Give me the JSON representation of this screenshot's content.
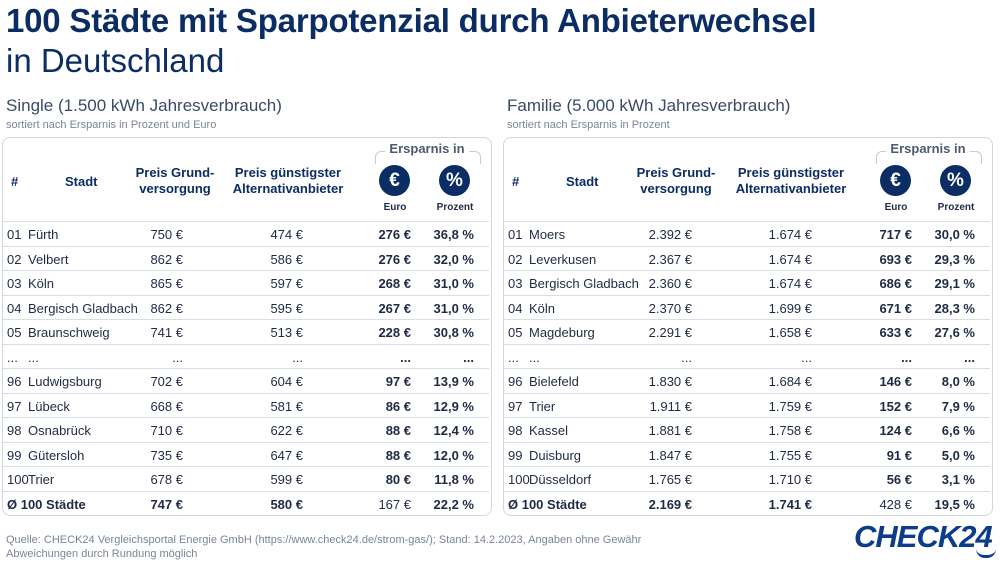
{
  "title": "100 Städte mit Sparpotenzial durch Anbieterwechsel",
  "subtitle": "in Deutschland",
  "headers": {
    "rank": "#",
    "city": "Stadt",
    "base_price": "Preis Grund-\nversorgung",
    "alt_price": "Preis günstigster\nAlternativanbieter",
    "savings": "Ersparnis in",
    "euro_symbol": "€",
    "percent_symbol": "%",
    "euro": "Euro",
    "percent": "Prozent"
  },
  "chart_data": [
    {
      "type": "table",
      "title": "Single (1.500 kWh Jahresverbrauch)",
      "subtitle": "sortiert nach Ersparnis in Prozent und Euro",
      "rows": [
        {
          "rank": "01",
          "city": "Fürth",
          "base": "750 €",
          "alt": "474 €",
          "save_eur": "276 €",
          "save_pct": "36,8 %"
        },
        {
          "rank": "02",
          "city": "Velbert",
          "base": "862 €",
          "alt": "586 €",
          "save_eur": "276 €",
          "save_pct": "32,0 %"
        },
        {
          "rank": "03",
          "city": "Köln",
          "base": "865 €",
          "alt": "597 €",
          "save_eur": "268 €",
          "save_pct": "31,0 %"
        },
        {
          "rank": "04",
          "city": "Bergisch Gladbach",
          "base": "862 €",
          "alt": "595 €",
          "save_eur": "267 €",
          "save_pct": "31,0 %"
        },
        {
          "rank": "05",
          "city": "Braunschweig",
          "base": "741 €",
          "alt": "513 €",
          "save_eur": "228 €",
          "save_pct": "30,8 %"
        },
        {
          "rank": "...",
          "city": "...",
          "base": "...",
          "alt": "...",
          "save_eur": "...",
          "save_pct": "..."
        },
        {
          "rank": "96",
          "city": "Ludwigsburg",
          "base": "702 €",
          "alt": "604 €",
          "save_eur": "97 €",
          "save_pct": "13,9 %"
        },
        {
          "rank": "97",
          "city": "Lübeck",
          "base": "668 €",
          "alt": "581 €",
          "save_eur": "86 €",
          "save_pct": "12,9 %"
        },
        {
          "rank": "98",
          "city": "Osnabrück",
          "base": "710 €",
          "alt": "622 €",
          "save_eur": "88 €",
          "save_pct": "12,4 %"
        },
        {
          "rank": "99",
          "city": "Gütersloh",
          "base": "735 €",
          "alt": "647 €",
          "save_eur": "88 €",
          "save_pct": "12,0 %"
        },
        {
          "rank": "100",
          "city": "Trier",
          "base": "678 €",
          "alt": "599 €",
          "save_eur": "80 €",
          "save_pct": "11,8 %"
        }
      ],
      "average": {
        "label": "Ø 100 Städte",
        "base": "747 €",
        "alt": "580 €",
        "save_eur": "167 €",
        "save_pct": "22,2 %"
      }
    },
    {
      "type": "table",
      "title": "Familie (5.000 kWh Jahresverbrauch)",
      "subtitle": "sortiert nach Ersparnis in Prozent",
      "rows": [
        {
          "rank": "01",
          "city": "Moers",
          "base": "2.392 €",
          "alt": "1.674 €",
          "save_eur": "717 €",
          "save_pct": "30,0 %"
        },
        {
          "rank": "02",
          "city": "Leverkusen",
          "base": "2.367 €",
          "alt": "1.674 €",
          "save_eur": "693 €",
          "save_pct": "29,3 %"
        },
        {
          "rank": "03",
          "city": "Bergisch Gladbach",
          "base": "2.360 €",
          "alt": "1.674 €",
          "save_eur": "686 €",
          "save_pct": "29,1 %"
        },
        {
          "rank": "04",
          "city": "Köln",
          "base": "2.370 €",
          "alt": "1.699 €",
          "save_eur": "671 €",
          "save_pct": "28,3 %"
        },
        {
          "rank": "05",
          "city": "Magdeburg",
          "base": "2.291 €",
          "alt": "1.658 €",
          "save_eur": "633 €",
          "save_pct": "27,6 %"
        },
        {
          "rank": "...",
          "city": "...",
          "base": "...",
          "alt": "...",
          "save_eur": "...",
          "save_pct": "..."
        },
        {
          "rank": "96",
          "city": "Bielefeld",
          "base": "1.830 €",
          "alt": "1.684 €",
          "save_eur": "146 €",
          "save_pct": "8,0 %"
        },
        {
          "rank": "97",
          "city": "Trier",
          "base": "1.911 €",
          "alt": "1.759 €",
          "save_eur": "152 €",
          "save_pct": "7,9 %"
        },
        {
          "rank": "98",
          "city": "Kassel",
          "base": "1.881 €",
          "alt": "1.758 €",
          "save_eur": "124 €",
          "save_pct": "6,6 %"
        },
        {
          "rank": "99",
          "city": "Duisburg",
          "base": "1.847 €",
          "alt": "1.755 €",
          "save_eur": "91 €",
          "save_pct": "5,0 %"
        },
        {
          "rank": "100",
          "city": "Düsseldorf",
          "base": "1.765 €",
          "alt": "1.710 €",
          "save_eur": "56 €",
          "save_pct": "3,1 %"
        }
      ],
      "average": {
        "label": "Ø 100 Städte",
        "base": "2.169 €",
        "alt": "1.741 €",
        "save_eur": "428 €",
        "save_pct": "19,5 %"
      }
    }
  ],
  "source_line1": "Quelle: CHECK24 Vergleichsportal Energie GmbH (https://www.check24.de/strom-gas/); Stand: 14.2.2023, Angaben ohne Gewähr",
  "source_line2": "Abweichungen durch Rundung möglich",
  "logo": "CHECK24",
  "colors": {
    "brand_navy": "#0b2d63",
    "logo_blue": "#0b3d8c"
  }
}
